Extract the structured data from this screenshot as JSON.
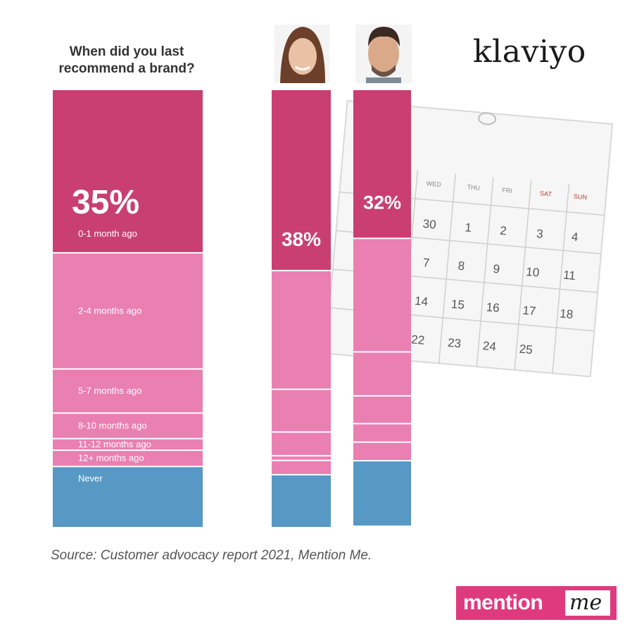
{
  "chart_data": {
    "type": "stacked-bar",
    "title": "When did you last recommend a brand?",
    "categories": [
      "0-1 month ago",
      "2-4 months ago",
      "5-7 months ago",
      "8-10 months ago",
      "11-12 months ago",
      "12+ months ago",
      "Never"
    ],
    "series": [
      {
        "values": [
          35,
          25,
          9.5,
          5.5,
          2.5,
          3.5,
          13
        ]
      },
      {
        "values": [
          38,
          25,
          9,
          5,
          1,
          3,
          11
        ]
      },
      {
        "values": [
          32,
          24.5,
          9.5,
          6,
          4,
          4,
          14
        ]
      }
    ],
    "value_labels": [
      "35%",
      "38%",
      "32%"
    ],
    "colors": {
      "first": "#c93f71",
      "middle": "#ea7fb2",
      "never": "#5798c4",
      "divider": "#ffffff"
    }
  },
  "brand": "klaviyo",
  "source": "Source: Customer advocacy report 2021, Mention Me.",
  "logo": {
    "word": "mention",
    "script": "me"
  }
}
